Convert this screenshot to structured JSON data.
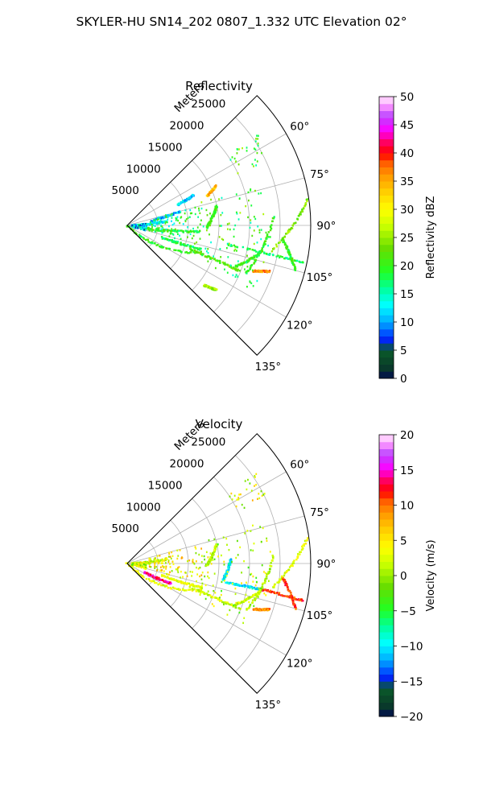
{
  "figure": {
    "title": "SKYLER-HU  SN14_202  0807_1.332 UTC Elevation 02°"
  },
  "colors": {
    "background": "#ffffff",
    "grid": "#b0b0b0",
    "frame": "#000000"
  },
  "chart_data": [
    {
      "type": "heatmap",
      "projection": "polar-sector",
      "title": "Reflectivity",
      "radial_label": "Meters",
      "r_range": [
        0,
        30000
      ],
      "r_ticks": [
        5000,
        10000,
        15000,
        20000,
        25000
      ],
      "r_tick_labels": [
        "5000",
        "10000",
        "15000",
        "20000",
        "25000"
      ],
      "theta_range_deg": [
        45,
        135
      ],
      "theta_ticks_deg": [
        60,
        75,
        90,
        105,
        120,
        135
      ],
      "theta_tick_labels": [
        "60°",
        "75°",
        "90°",
        "105°",
        "120°",
        "135°"
      ],
      "grid": true,
      "colorbar": {
        "label": "Reflectivity dBZ",
        "range": [
          0,
          50
        ],
        "ticks": [
          0,
          5,
          10,
          15,
          20,
          25,
          30,
          35,
          40,
          45,
          50
        ],
        "tick_labels": [
          "0",
          "5",
          "10",
          "15",
          "20",
          "25",
          "30",
          "35",
          "40",
          "45",
          "50"
        ]
      },
      "features": [
        {
          "kind": "line",
          "from": [
            0,
            135
          ],
          "to": [
            13000,
            110
          ],
          "value": 20
        },
        {
          "kind": "line",
          "from": [
            11000,
            111
          ],
          "to": [
            20000,
            112
          ],
          "value": 22
        },
        {
          "kind": "line",
          "from": [
            19000,
            111
          ],
          "to": [
            22500,
            101
          ],
          "value": 20
        },
        {
          "kind": "line",
          "from": [
            16500,
            101
          ],
          "to": [
            29500,
            102
          ],
          "value": 18
        },
        {
          "kind": "line",
          "from": [
            21000,
            112
          ],
          "to": [
            24000,
            87
          ],
          "value": 20
        },
        {
          "kind": "line",
          "from": [
            24000,
            100
          ],
          "to": [
            29800,
            82
          ],
          "value": 24
        },
        {
          "kind": "line",
          "from": [
            22000,
            110
          ],
          "to": [
            24500,
            108
          ],
          "value": 36
        },
        {
          "kind": "line",
          "from": [
            25500,
            95
          ],
          "to": [
            28500,
            105
          ],
          "value": 20
        },
        {
          "kind": "line",
          "from": [
            1000,
            92
          ],
          "to": [
            6500,
            84
          ],
          "value": 12
        },
        {
          "kind": "line",
          "from": [
            3000,
            100
          ],
          "to": [
            12000,
            95
          ],
          "value": 20
        },
        {
          "kind": "line",
          "from": [
            13000,
            92
          ],
          "to": [
            15000,
            78
          ],
          "value": 20
        },
        {
          "kind": "line",
          "from": [
            9000,
            68
          ],
          "to": [
            12000,
            66
          ],
          "value": 12
        },
        {
          "kind": "line",
          "from": [
            4000,
            80
          ],
          "to": [
            9000,
            76
          ],
          "value": 10
        },
        {
          "kind": "line",
          "from": [
            16000,
            128
          ],
          "to": [
            18000,
            126
          ],
          "value": 25
        },
        {
          "kind": "line",
          "from": [
            14000,
            70
          ],
          "to": [
            16000,
            66
          ],
          "value": 34
        },
        {
          "kind": "line",
          "from": [
            6000,
            110
          ],
          "to": [
            13000,
            108
          ],
          "value": 18
        },
        {
          "kind": "scatter",
          "center": [
            2000,
            95
          ],
          "spread": [
            2500,
            22
          ],
          "count": 90,
          "value": 12
        },
        {
          "kind": "scatter",
          "center": [
            8000,
            90
          ],
          "spread": [
            9000,
            30
          ],
          "count": 110,
          "value": 18
        },
        {
          "kind": "scatter",
          "center": [
            18000,
            95
          ],
          "spread": [
            11000,
            45
          ],
          "count": 100,
          "value": 20
        },
        {
          "kind": "scatter",
          "center": [
            23000,
            60
          ],
          "spread": [
            6000,
            10
          ],
          "count": 30,
          "value": 20
        }
      ]
    },
    {
      "type": "heatmap",
      "projection": "polar-sector",
      "title": "Velocity",
      "radial_label": "Meters",
      "r_range": [
        0,
        30000
      ],
      "r_ticks": [
        5000,
        10000,
        15000,
        20000,
        25000
      ],
      "r_tick_labels": [
        "5000",
        "10000",
        "15000",
        "20000",
        "25000"
      ],
      "theta_range_deg": [
        45,
        135
      ],
      "theta_ticks_deg": [
        60,
        75,
        90,
        105,
        120,
        135
      ],
      "theta_tick_labels": [
        "60°",
        "75°",
        "90°",
        "105°",
        "120°",
        "135°"
      ],
      "grid": true,
      "colorbar": {
        "label": "Velocity (m/s)",
        "range": [
          -20,
          20
        ],
        "ticks": [
          -20,
          -15,
          -10,
          -5,
          0,
          5,
          10,
          15,
          20
        ],
        "tick_labels": [
          "−20",
          "−15",
          "−10",
          "−5",
          "0",
          "5",
          "10",
          "15",
          "20"
        ]
      },
      "features": [
        {
          "kind": "line",
          "from": [
            0,
            135
          ],
          "to": [
            13000,
            110
          ],
          "value": 3
        },
        {
          "kind": "line",
          "from": [
            3000,
            118
          ],
          "to": [
            8000,
            115
          ],
          "value": 14
        },
        {
          "kind": "line",
          "from": [
            11000,
            111
          ],
          "to": [
            20000,
            112
          ],
          "value": 2
        },
        {
          "kind": "line",
          "from": [
            19000,
            111
          ],
          "to": [
            22500,
            101
          ],
          "value": 2
        },
        {
          "kind": "line",
          "from": [
            16500,
            101
          ],
          "to": [
            22500,
            101
          ],
          "value": -10
        },
        {
          "kind": "line",
          "from": [
            22500,
            101
          ],
          "to": [
            29500,
            102
          ],
          "value": 11
        },
        {
          "kind": "line",
          "from": [
            21000,
            112
          ],
          "to": [
            24000,
            87
          ],
          "value": 1
        },
        {
          "kind": "line",
          "from": [
            24000,
            100
          ],
          "to": [
            29800,
            82
          ],
          "value": 3
        },
        {
          "kind": "line",
          "from": [
            25500,
            95
          ],
          "to": [
            28500,
            105
          ],
          "value": 11
        },
        {
          "kind": "line",
          "from": [
            22000,
            110
          ],
          "to": [
            24500,
            108
          ],
          "value": 9
        },
        {
          "kind": "line",
          "from": [
            13000,
            92
          ],
          "to": [
            15000,
            78
          ],
          "value": 1
        },
        {
          "kind": "line",
          "from": [
            16000,
            100
          ],
          "to": [
            17000,
            88
          ],
          "value": -10
        },
        {
          "kind": "line",
          "from": [
            1000,
            92
          ],
          "to": [
            6500,
            84
          ],
          "value": 2
        },
        {
          "kind": "line",
          "from": [
            6000,
            110
          ],
          "to": [
            13000,
            108
          ],
          "value": 3
        },
        {
          "kind": "scatter",
          "center": [
            2000,
            95
          ],
          "spread": [
            2500,
            22
          ],
          "count": 90,
          "value": 2
        },
        {
          "kind": "scatter",
          "center": [
            8000,
            90
          ],
          "spread": [
            9000,
            30
          ],
          "count": 110,
          "value": 4
        },
        {
          "kind": "scatter",
          "center": [
            18000,
            95
          ],
          "spread": [
            11000,
            45
          ],
          "count": 100,
          "value": 1
        },
        {
          "kind": "scatter",
          "center": [
            23000,
            60
          ],
          "spread": [
            6000,
            10
          ],
          "count": 30,
          "value": 3
        }
      ]
    }
  ]
}
